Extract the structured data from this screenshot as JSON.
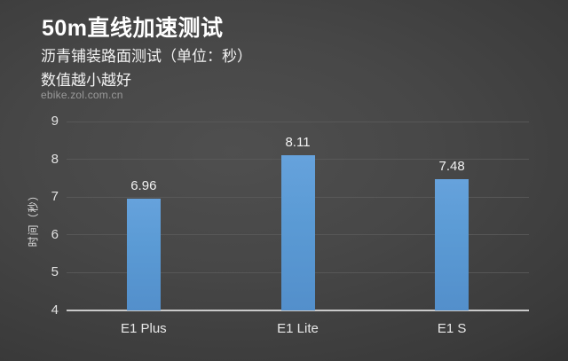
{
  "header": {
    "title": "50m直线加速测试",
    "subtitle": "沥青铺装路面测试（单位：秒）",
    "note": "数值越小越好",
    "watermark": "ebike.zol.com.cn"
  },
  "chart_data": {
    "type": "bar",
    "title": "50m直线加速测试",
    "subtitle": "沥青铺装路面测试（单位：秒）",
    "annotation": "数值越小越好",
    "categories": [
      "E1 Plus",
      "E1 Lite",
      "E1 S"
    ],
    "values": [
      6.96,
      8.11,
      7.48
    ],
    "value_labels": [
      "6.96",
      "8.11",
      "7.48"
    ],
    "xlabel": "",
    "ylabel": "时间（秒）",
    "ylim": [
      4,
      9
    ],
    "yticks": [
      4,
      5,
      6,
      7,
      8,
      9
    ],
    "grid": true,
    "legend_position": "none"
  },
  "colors": {
    "bar": "#5b9bd5",
    "gridline": "#5a5a5a",
    "axis_line": "#c9c9c9",
    "text": "#f2f2f2",
    "tick_text": "#e2e2e2",
    "watermark": "#9a9a9a",
    "background_center": "#4f4f4f",
    "background_edge": "#1d1d1d"
  }
}
